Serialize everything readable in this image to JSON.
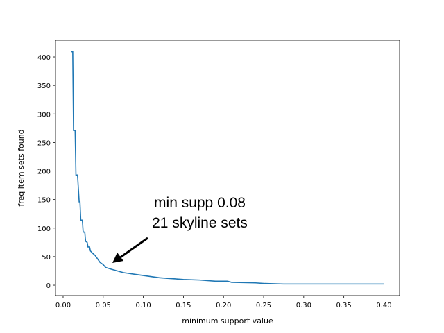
{
  "chart_data": {
    "type": "line",
    "x_label": "minimum support value",
    "y_label": "freq item sets found",
    "annotations": [
      "min supp 0.08",
      "21 skyline sets"
    ],
    "color": "#1f77b4",
    "x": [
      0.01,
      0.012,
      0.013,
      0.015,
      0.016,
      0.018,
      0.02,
      0.021,
      0.022,
      0.024,
      0.025,
      0.027,
      0.028,
      0.03,
      0.031,
      0.033,
      0.034,
      0.036,
      0.04,
      0.043,
      0.046,
      0.05,
      0.053,
      0.06,
      0.065,
      0.07,
      0.075,
      0.08,
      0.09,
      0.1,
      0.11,
      0.12,
      0.13,
      0.14,
      0.15,
      0.17,
      0.19,
      0.205,
      0.21,
      0.24,
      0.25,
      0.275,
      0.4
    ],
    "values": [
      409,
      409,
      271,
      271,
      193,
      193,
      146,
      146,
      114,
      114,
      93,
      93,
      77,
      75,
      67,
      67,
      60,
      57,
      52,
      46,
      40,
      36,
      31,
      28,
      26,
      24,
      22,
      21,
      19,
      17,
      15,
      13,
      12,
      11,
      10,
      9,
      7,
      7,
      5,
      4,
      3,
      2,
      2
    ],
    "xlim": [
      -0.0095,
      0.4195
    ],
    "ylim": [
      -18.2,
      429.2
    ],
    "xticks": [
      {
        "value": 0,
        "label": "0.00"
      },
      0.05,
      {
        "value": 0.1,
        "label": "0.10"
      },
      0.15,
      {
        "value": 0.2,
        "label": "0.20"
      },
      0.25,
      {
        "value": 0.3,
        "label": "0.30"
      },
      0.35,
      {
        "value": 0.4,
        "label": "0.40"
      }
    ],
    "yticks": [
      0,
      50,
      100,
      150,
      200,
      250,
      300,
      350,
      400
    ]
  }
}
